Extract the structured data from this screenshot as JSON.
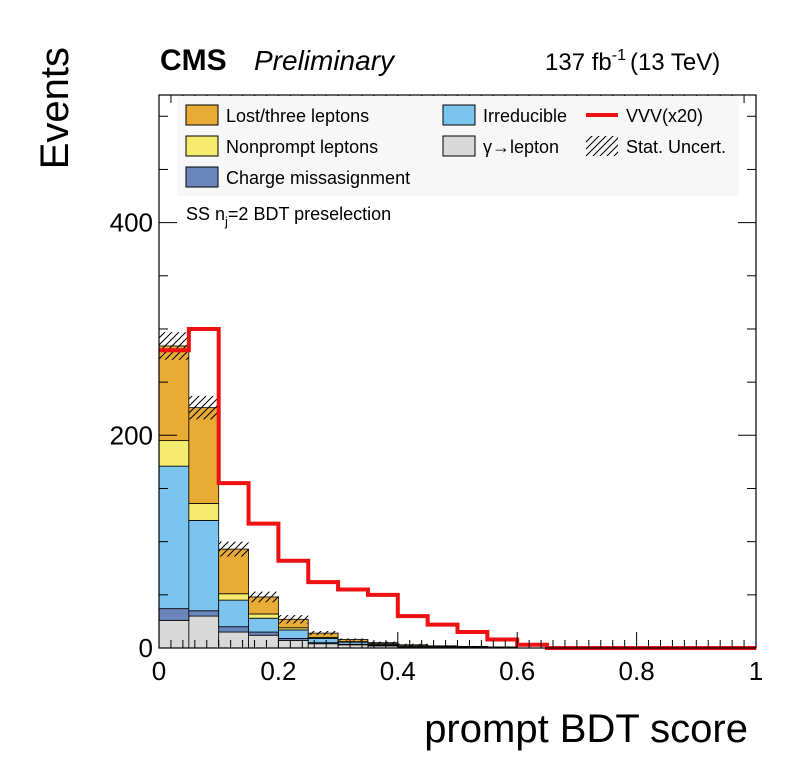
{
  "chart_data": {
    "type": "histogram-stacked",
    "header": {
      "experiment": "CMS",
      "status": "Preliminary",
      "lumi_value": "137 fb",
      "lumi_exp": "-1",
      "lumi_energy": "(13 TeV)"
    },
    "selection_label": "SS n",
    "selection_sub": "j",
    "selection_rest": "=2 BDT preselection",
    "xlabel": "prompt BDT score",
    "ylabel": "Events",
    "xlim": [
      0,
      1
    ],
    "ylim": [
      0,
      520
    ],
    "x_ticks": [
      0,
      0.2,
      0.4,
      0.6,
      0.8,
      1
    ],
    "x_tick_labels": [
      "0",
      "0.2",
      "0.4",
      "0.6",
      "0.8",
      "1"
    ],
    "y_ticks": [
      0,
      200,
      400
    ],
    "y_tick_labels": [
      "0",
      "200",
      "400"
    ],
    "bin_edges": [
      0,
      0.05,
      0.1,
      0.15,
      0.2,
      0.25,
      0.3,
      0.35,
      0.4,
      0.45,
      0.5,
      0.55,
      0.6,
      0.65,
      0.7,
      0.75,
      0.8,
      0.85,
      0.9,
      0.95,
      1.0
    ],
    "stack_series": [
      {
        "name": "γ→lepton",
        "color": "#d9d9d9",
        "values": [
          26,
          30,
          15,
          12,
          7,
          4,
          3,
          2,
          1,
          1,
          0.5,
          0.5,
          0,
          0,
          0,
          0,
          0,
          0,
          0,
          0
        ]
      },
      {
        "name": "Charge missasignment",
        "color": "#6a86bd",
        "values": [
          11,
          5,
          5,
          3,
          2,
          1,
          0.5,
          0.5,
          0,
          0,
          0,
          0,
          0,
          0,
          0,
          0,
          0,
          0,
          0,
          0
        ]
      },
      {
        "name": "Irreducible",
        "color": "#7cc4ee",
        "values": [
          134,
          85,
          25,
          13,
          8,
          4,
          2,
          1,
          1,
          0.5,
          0.5,
          0,
          0,
          0,
          0,
          0,
          0,
          0,
          0,
          0
        ]
      },
      {
        "name": "Nonprompt leptons",
        "color": "#f5eb6e",
        "values": [
          24,
          16,
          6,
          4,
          2,
          1,
          0.5,
          0.5,
          0,
          0,
          0,
          0,
          0,
          0,
          0,
          0,
          0,
          0,
          0,
          0
        ]
      },
      {
        "name": "Lost/three leptons",
        "color": "#e8ab36",
        "values": [
          89,
          90,
          42,
          16,
          8,
          4,
          2,
          1,
          1,
          0.5,
          0.5,
          0.5,
          0,
          0,
          0,
          0,
          0,
          0,
          0,
          0
        ]
      }
    ],
    "uncertainty": {
      "name": "Stat. Uncert.",
      "values": [
        13,
        11,
        7,
        5,
        4,
        2,
        1,
        1,
        1,
        0.5,
        0.5,
        0.5,
        0,
        0,
        0,
        0,
        0,
        0,
        0,
        0
      ]
    },
    "signal": {
      "name": "VVV(x20)",
      "color": "#ee1111",
      "values": [
        280,
        300,
        155,
        117,
        82,
        62,
        55,
        50,
        30,
        22,
        15,
        8,
        3,
        0,
        0,
        0,
        0,
        0,
        0,
        0
      ]
    },
    "legend": {
      "placement": "top",
      "entries": [
        {
          "label": "Lost/three leptons",
          "kind": "fill",
          "color": "#e8ab36"
        },
        {
          "label": "Irreducible",
          "kind": "fill",
          "color": "#7cc4ee"
        },
        {
          "label": "VVV(x20)",
          "kind": "line",
          "color": "#ee1111"
        },
        {
          "label": "Nonprompt leptons",
          "kind": "fill",
          "color": "#f5eb6e"
        },
        {
          "label": "γ→lepton",
          "kind": "fill",
          "color": "#d9d9d9"
        },
        {
          "label": "Stat. Uncert.",
          "kind": "hatch",
          "color": "#000000"
        },
        {
          "label": "Charge missasignment",
          "kind": "fill",
          "color": "#6a86bd"
        }
      ]
    }
  }
}
